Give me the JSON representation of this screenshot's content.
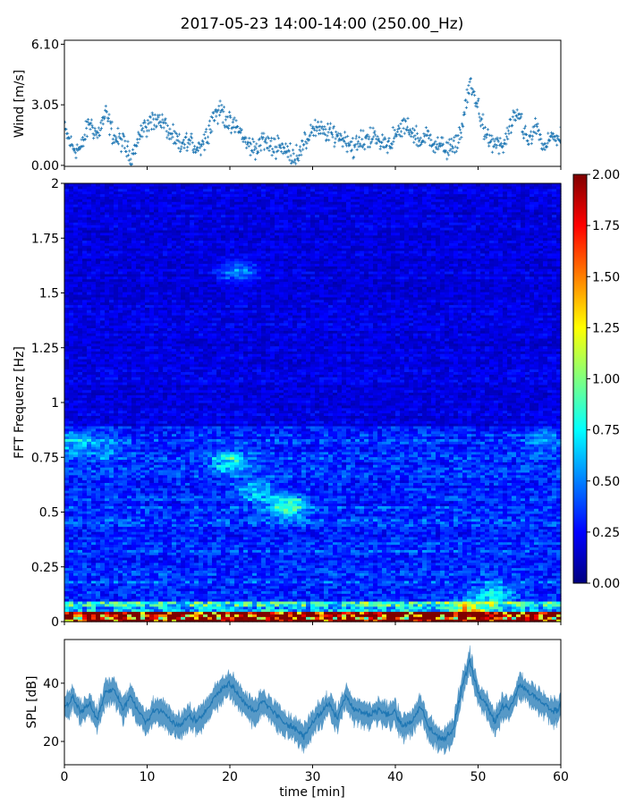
{
  "chart_data": [
    {
      "type": "scatter",
      "panel": "wind",
      "title": "2017-05-23 14:00-14:00 (250.00_Hz)",
      "xlabel": "",
      "ylabel": "Wind [m/s]",
      "xlim": [
        0,
        60
      ],
      "ylim": [
        -0.05,
        6.3
      ],
      "yticks": [
        0.0,
        3.05,
        6.1
      ],
      "ytick_labels": [
        "0.00",
        "3.05",
        "6.10"
      ],
      "grid": false,
      "series": [
        {
          "color": "#1f77b4",
          "marker": "+",
          "x": [
            0,
            1,
            2,
            3,
            4,
            5,
            6,
            7,
            8,
            9,
            10,
            11,
            12,
            13,
            14,
            15,
            16,
            17,
            18,
            19,
            20,
            21,
            22,
            23,
            24,
            25,
            26,
            27,
            28,
            29,
            30,
            31,
            32,
            33,
            34,
            35,
            36,
            37,
            38,
            39,
            40,
            41,
            42,
            43,
            44,
            45,
            46,
            47,
            48,
            49,
            50,
            51,
            52,
            53,
            54,
            55,
            56,
            57,
            58,
            59,
            60
          ],
          "y": [
            1.8,
            0.9,
            0.8,
            2.2,
            1.5,
            2.6,
            1.4,
            1.2,
            0.4,
            1.5,
            2.0,
            2.4,
            2.1,
            1.4,
            1.0,
            1.2,
            0.9,
            1.3,
            2.5,
            2.8,
            2.0,
            1.9,
            1.1,
            0.8,
            1.3,
            0.9,
            1.1,
            0.6,
            0.5,
            1.0,
            1.9,
            1.7,
            1.6,
            1.5,
            1.3,
            0.9,
            1.2,
            1.5,
            1.2,
            1.1,
            1.4,
            2.0,
            1.7,
            1.2,
            1.5,
            1.0,
            0.9,
            0.8,
            1.8,
            4.1,
            3.0,
            1.3,
            1.1,
            0.9,
            2.0,
            2.6,
            1.1,
            1.9,
            0.8,
            1.5,
            1.3
          ]
        }
      ]
    },
    {
      "type": "heatmap",
      "panel": "spectrogram",
      "title": "",
      "xlabel": "",
      "ylabel": "FFT Frequenz [Hz]",
      "xlim": [
        0,
        60
      ],
      "ylim": [
        0,
        2
      ],
      "yticks": [
        0,
        0.25,
        0.5,
        0.75,
        1,
        1.25,
        1.5,
        1.75,
        2
      ],
      "ytick_labels": [
        "0",
        "0.25",
        "0.5",
        "0.75",
        "1",
        "1.25",
        "1.5",
        "1.75",
        "2"
      ],
      "colormap": "jet",
      "clim": [
        0.0,
        2.0
      ],
      "colorbar_ticks": [
        0.0,
        0.25,
        0.5,
        0.75,
        1.0,
        1.25,
        1.5,
        1.75,
        2.0
      ],
      "colorbar_tick_labels": [
        "0.00",
        "0.25",
        "0.50",
        "0.75",
        "1.00",
        "1.25",
        "1.50",
        "1.75",
        "2.00"
      ],
      "colormap_stops": [
        "#00007f",
        "#0000ff",
        "#007fff",
        "#00ffff",
        "#7fff7f",
        "#ffff00",
        "#ff7f00",
        "#ff0000",
        "#7f0000"
      ],
      "description_of_values": {
        "background_level": 0.2,
        "frequency_bands": [
          {
            "f_range": [
              0.0,
              0.05
            ],
            "level": 1.7
          },
          {
            "f_range": [
              0.05,
              0.1
            ],
            "level": 0.7
          },
          {
            "f_range": [
              0.1,
              0.25
            ],
            "level": 0.35
          },
          {
            "f_range": [
              0.25,
              0.9
            ],
            "level": 0.32
          },
          {
            "f_range": [
              0.9,
              2.0
            ],
            "level": 0.18
          }
        ],
        "hot_spots": [
          {
            "t": 1,
            "f": 0.82,
            "level": 0.7
          },
          {
            "t": 5,
            "f": 0.8,
            "level": 0.6
          },
          {
            "t": 20,
            "f": 0.73,
            "level": 0.8
          },
          {
            "t": 23,
            "f": 0.6,
            "level": 0.75
          },
          {
            "t": 27,
            "f": 0.53,
            "level": 1.0
          },
          {
            "t": 21,
            "f": 1.6,
            "level": 0.55
          },
          {
            "t": 49,
            "f": 0.03,
            "level": 2.0
          },
          {
            "t": 52,
            "f": 0.12,
            "level": 0.9
          },
          {
            "t": 58,
            "f": 0.83,
            "level": 0.6
          }
        ]
      }
    },
    {
      "type": "line",
      "panel": "spl",
      "title": "",
      "xlabel": "time [min]",
      "ylabel": "SPL [dB]",
      "xlim": [
        0,
        60
      ],
      "ylim": [
        12,
        55
      ],
      "xticks": [
        0,
        10,
        20,
        30,
        40,
        50,
        60
      ],
      "xtick_labels": [
        "0",
        "10",
        "20",
        "30",
        "40",
        "50",
        "60"
      ],
      "yticks": [
        20,
        40
      ],
      "ytick_labels": [
        "20",
        "40"
      ],
      "grid": false,
      "series": [
        {
          "color": "#1f77b4",
          "x": [
            0,
            1,
            2,
            3,
            4,
            5,
            6,
            7,
            8,
            9,
            10,
            11,
            12,
            13,
            14,
            15,
            16,
            17,
            18,
            19,
            20,
            21,
            22,
            23,
            24,
            25,
            26,
            27,
            28,
            29,
            30,
            31,
            32,
            33,
            34,
            35,
            36,
            37,
            38,
            39,
            40,
            41,
            42,
            43,
            44,
            45,
            46,
            47,
            48,
            49,
            50,
            51,
            52,
            53,
            54,
            55,
            56,
            57,
            58,
            59,
            60
          ],
          "y": [
            32,
            35,
            30,
            33,
            28,
            37,
            38,
            31,
            36,
            30,
            27,
            31,
            30,
            27,
            25,
            29,
            27,
            30,
            35,
            38,
            40,
            36,
            33,
            30,
            34,
            31,
            28,
            26,
            24,
            22,
            27,
            30,
            33,
            28,
            36,
            31,
            30,
            29,
            31,
            29,
            30,
            25,
            27,
            32,
            25,
            22,
            21,
            24,
            38,
            48,
            37,
            33,
            27,
            32,
            32,
            40,
            37,
            35,
            33,
            30,
            32
          ],
          "band_halfwidth": 3.5
        }
      ]
    }
  ]
}
